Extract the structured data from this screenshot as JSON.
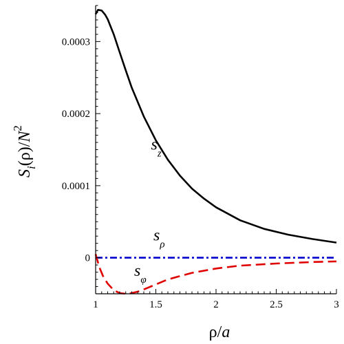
{
  "chart_data": {
    "type": "line",
    "xlabel": {
      "main": "ρ/",
      "italic": "a"
    },
    "ylabel": {
      "s": "S",
      "sub": "i",
      "mid": "(ρ)/",
      "n": "N",
      "sup": "2"
    },
    "xlim": [
      1,
      3
    ],
    "ylim": [
      -5e-05,
      0.00035
    ],
    "x_ticks": [
      1,
      1.5,
      2,
      2.5,
      3
    ],
    "x_tick_labels": [
      "1",
      "1.5",
      "2",
      "2.5",
      "3"
    ],
    "y_ticks": [
      0,
      0.0001,
      0.0002,
      0.0003
    ],
    "y_tick_labels": [
      "0",
      "0.0001",
      "0.0002",
      "0.0003"
    ],
    "series": [
      {
        "name": "s_z",
        "label_main": "s",
        "label_sub": "z",
        "color": "#000000",
        "style": "solid",
        "x": [
          1.0,
          1.02,
          1.05,
          1.08,
          1.1,
          1.15,
          1.2,
          1.25,
          1.3,
          1.4,
          1.5,
          1.6,
          1.7,
          1.8,
          1.9,
          2.0,
          2.2,
          2.4,
          2.6,
          2.8,
          3.0
        ],
        "y": [
          0.000338,
          0.000344,
          0.000343,
          0.000337,
          0.000331,
          0.00031,
          0.000285,
          0.00026,
          0.000236,
          0.000196,
          0.000163,
          0.000136,
          0.000114,
          9.6e-05,
          8.2e-05,
          7e-05,
          5.2e-05,
          4e-05,
          3.2e-05,
          2.6e-05,
          2.1e-05
        ]
      },
      {
        "name": "s_ρ",
        "label_main": "s",
        "label_sub": "ρ",
        "color": "#0000cc",
        "style": "dashdot",
        "x": [
          1.0,
          3.0
        ],
        "y": [
          0.0,
          0.0
        ]
      },
      {
        "name": "s_φ",
        "label_main": "s",
        "label_sub": "φ",
        "color": "#e00000",
        "style": "dashed",
        "x": [
          1.0,
          1.03,
          1.06,
          1.1,
          1.15,
          1.2,
          1.25,
          1.3,
          1.35,
          1.4,
          1.5,
          1.6,
          1.8,
          2.0,
          2.2,
          2.5,
          2.8,
          3.0
        ],
        "y": [
          5e-06,
          -1.3e-05,
          -2.5e-05,
          -3.6e-05,
          -4.5e-05,
          -4.9e-05,
          -5e-05,
          -4.9e-05,
          -4.7e-05,
          -4.4e-05,
          -3.7e-05,
          -3e-05,
          -2.1e-05,
          -1.5e-05,
          -1.1e-05,
          -8e-06,
          -6e-06,
          -5e-06
        ]
      }
    ],
    "annotations": [
      {
        "series": "s_z",
        "x": 1.46,
        "y": 0.00015
      },
      {
        "series": "s_ρ",
        "x": 1.48,
        "y": 2.4e-05
      },
      {
        "series": "s_φ",
        "x": 1.32,
        "y": -2.5e-05
      }
    ]
  }
}
